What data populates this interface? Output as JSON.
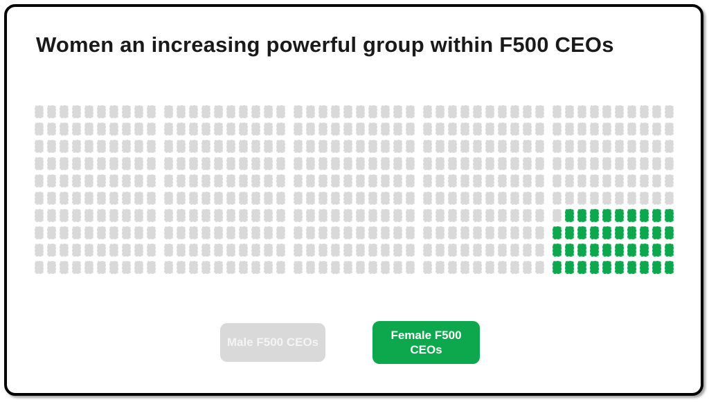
{
  "title": "Women an increasing powerful group within F500 CEOs",
  "legend": {
    "male_label": "Male F500 CEOs",
    "female_label": "Female F500 CEOs"
  },
  "colors": {
    "male": "#d9d9d9",
    "female": "#0da74d",
    "title_text": "#1a1a1a",
    "frame_border": "#000000",
    "background": "#ffffff"
  },
  "chart_data": {
    "type": "waffle",
    "title": "Women an increasing powerful group within F500 CEOs",
    "rows": 10,
    "cols": 50,
    "col_group_size": 10,
    "total_squares": 500,
    "series": [
      {
        "name": "Male F500 CEOs",
        "value": 461,
        "color": "#d9d9d9"
      },
      {
        "name": "Female F500 CEOs",
        "value": 39,
        "color": "#0da74d"
      }
    ],
    "legend_position": "bottom",
    "female_cells": [
      [
        7,
        42
      ],
      [
        7,
        43
      ],
      [
        7,
        44
      ],
      [
        7,
        45
      ],
      [
        7,
        46
      ],
      [
        7,
        47
      ],
      [
        7,
        48
      ],
      [
        7,
        49
      ],
      [
        7,
        50
      ],
      [
        8,
        41
      ],
      [
        8,
        42
      ],
      [
        8,
        43
      ],
      [
        8,
        44
      ],
      [
        8,
        45
      ],
      [
        8,
        46
      ],
      [
        8,
        47
      ],
      [
        8,
        48
      ],
      [
        8,
        49
      ],
      [
        8,
        50
      ],
      [
        9,
        41
      ],
      [
        9,
        42
      ],
      [
        9,
        43
      ],
      [
        9,
        44
      ],
      [
        9,
        45
      ],
      [
        9,
        46
      ],
      [
        9,
        47
      ],
      [
        9,
        48
      ],
      [
        9,
        49
      ],
      [
        9,
        50
      ],
      [
        10,
        41
      ],
      [
        10,
        42
      ],
      [
        10,
        43
      ],
      [
        10,
        44
      ],
      [
        10,
        45
      ],
      [
        10,
        46
      ],
      [
        10,
        47
      ],
      [
        10,
        48
      ],
      [
        10,
        49
      ],
      [
        10,
        50
      ]
    ]
  }
}
